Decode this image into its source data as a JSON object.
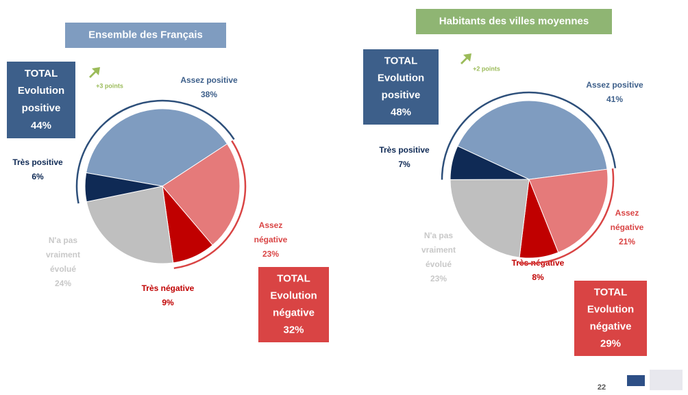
{
  "chart_data": [
    {
      "type": "pie",
      "title": "Ensemble des Français",
      "categories": [
        [
          "Assez positive"
        ],
        [
          "Assez",
          "négative"
        ],
        [
          "Très négative"
        ],
        [
          "N'a pas",
          "vraiment",
          "évolué"
        ],
        [
          "Très positive"
        ]
      ],
      "values": [
        38,
        23,
        9,
        24,
        6
      ],
      "value_labels": [
        "38%",
        "23%",
        "9%",
        "24%",
        "6%"
      ],
      "colors": [
        "#7f9cc0",
        "#e57a7a",
        "#c00000",
        "#bfbfbf",
        "#0f2a55"
      ],
      "total_positive": {
        "label": [
          "TOTAL",
          "Evolution",
          "positive"
        ],
        "value": 44,
        "value_label": "44%",
        "change": "+3 points"
      },
      "total_negative": {
        "label": [
          "TOTAL",
          "Evolution",
          "négative"
        ],
        "value": 32,
        "value_label": "32%"
      }
    },
    {
      "type": "pie",
      "title": "Habitants des villes moyennes",
      "categories": [
        [
          "Assez positive"
        ],
        [
          "Assez",
          "négative"
        ],
        [
          "Très négative"
        ],
        [
          "N'a pas",
          "vraiment",
          "évolué"
        ],
        [
          "Très positive"
        ]
      ],
      "values": [
        41,
        21,
        8,
        23,
        7
      ],
      "value_labels": [
        "41%",
        "21%",
        "8%",
        "23%",
        "7%"
      ],
      "colors": [
        "#7f9cc0",
        "#e57a7a",
        "#c00000",
        "#bfbfbf",
        "#0f2a55"
      ],
      "total_positive": {
        "label": [
          "TOTAL",
          "Evolution",
          "positive"
        ],
        "value": 48,
        "value_label": "48%",
        "change": "+2 points"
      },
      "total_negative": {
        "label": [
          "TOTAL",
          "Evolution",
          "négative"
        ],
        "value": 29,
        "value_label": "29%"
      }
    }
  ],
  "page_number": "22"
}
